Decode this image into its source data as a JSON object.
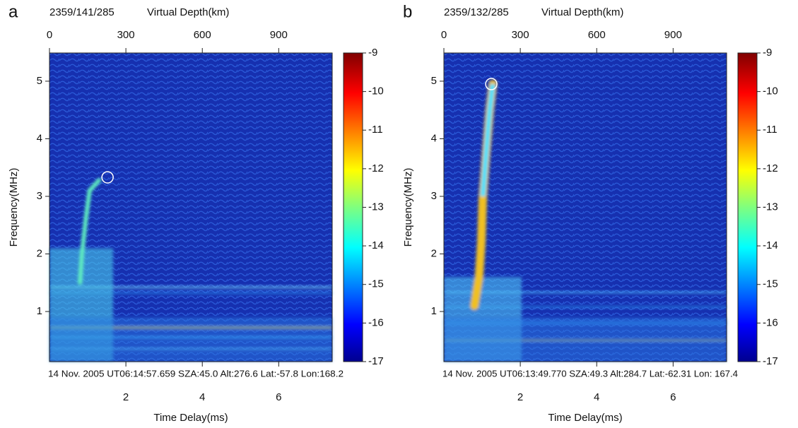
{
  "chart_data": [
    {
      "type": "heatmap",
      "panel": "a",
      "title": "2359/141/285",
      "x2label": "Virtual Depth(km)",
      "x2lim": [
        0,
        1110
      ],
      "x2ticks": [
        0,
        300,
        600,
        900
      ],
      "xlabel": "Time Delay(ms)",
      "xlim": [
        0,
        7.4
      ],
      "xticks": [
        2,
        4,
        6
      ],
      "ylabel": "Frequency(MHz)",
      "ylim": [
        0.13,
        5.49
      ],
      "yticks": [
        1,
        2,
        3,
        4,
        5
      ],
      "clim": [
        -17,
        -9
      ],
      "cticks": [
        -9,
        -10,
        -11,
        -12,
        -13,
        -14,
        -15,
        -16,
        -17
      ],
      "colormap": "jet",
      "footer": "14 Nov. 2005 UT06:14:57.659 SZA:45.0 Alt:276.6 Lat:-57.8 Lon:168.2",
      "marker": {
        "x": 1.52,
        "y": 3.33
      }
    },
    {
      "type": "heatmap",
      "panel": "b",
      "title": "2359/132/285",
      "x2label": "Virtual Depth(km)",
      "x2lim": [
        0,
        1110
      ],
      "x2ticks": [
        0,
        300,
        600,
        900
      ],
      "xlabel": "Time Delay(ms)",
      "xlim": [
        0,
        7.4
      ],
      "xticks": [
        2,
        4,
        6
      ],
      "ylabel": "Frequency(MHz)",
      "ylim": [
        0.13,
        5.49
      ],
      "yticks": [
        1,
        2,
        3,
        4,
        5
      ],
      "clim": [
        -17,
        -9
      ],
      "cticks": [
        -9,
        -10,
        -11,
        -12,
        -13,
        -14,
        -15,
        -16,
        -17
      ],
      "colormap": "jet",
      "footer": "14 Nov. 2005 UT06:13:49.770 SZA:49.3 Alt:284.7 Lat:-62.31 Lon: 167.4",
      "marker": {
        "x": 1.24,
        "y": 4.95
      }
    }
  ]
}
